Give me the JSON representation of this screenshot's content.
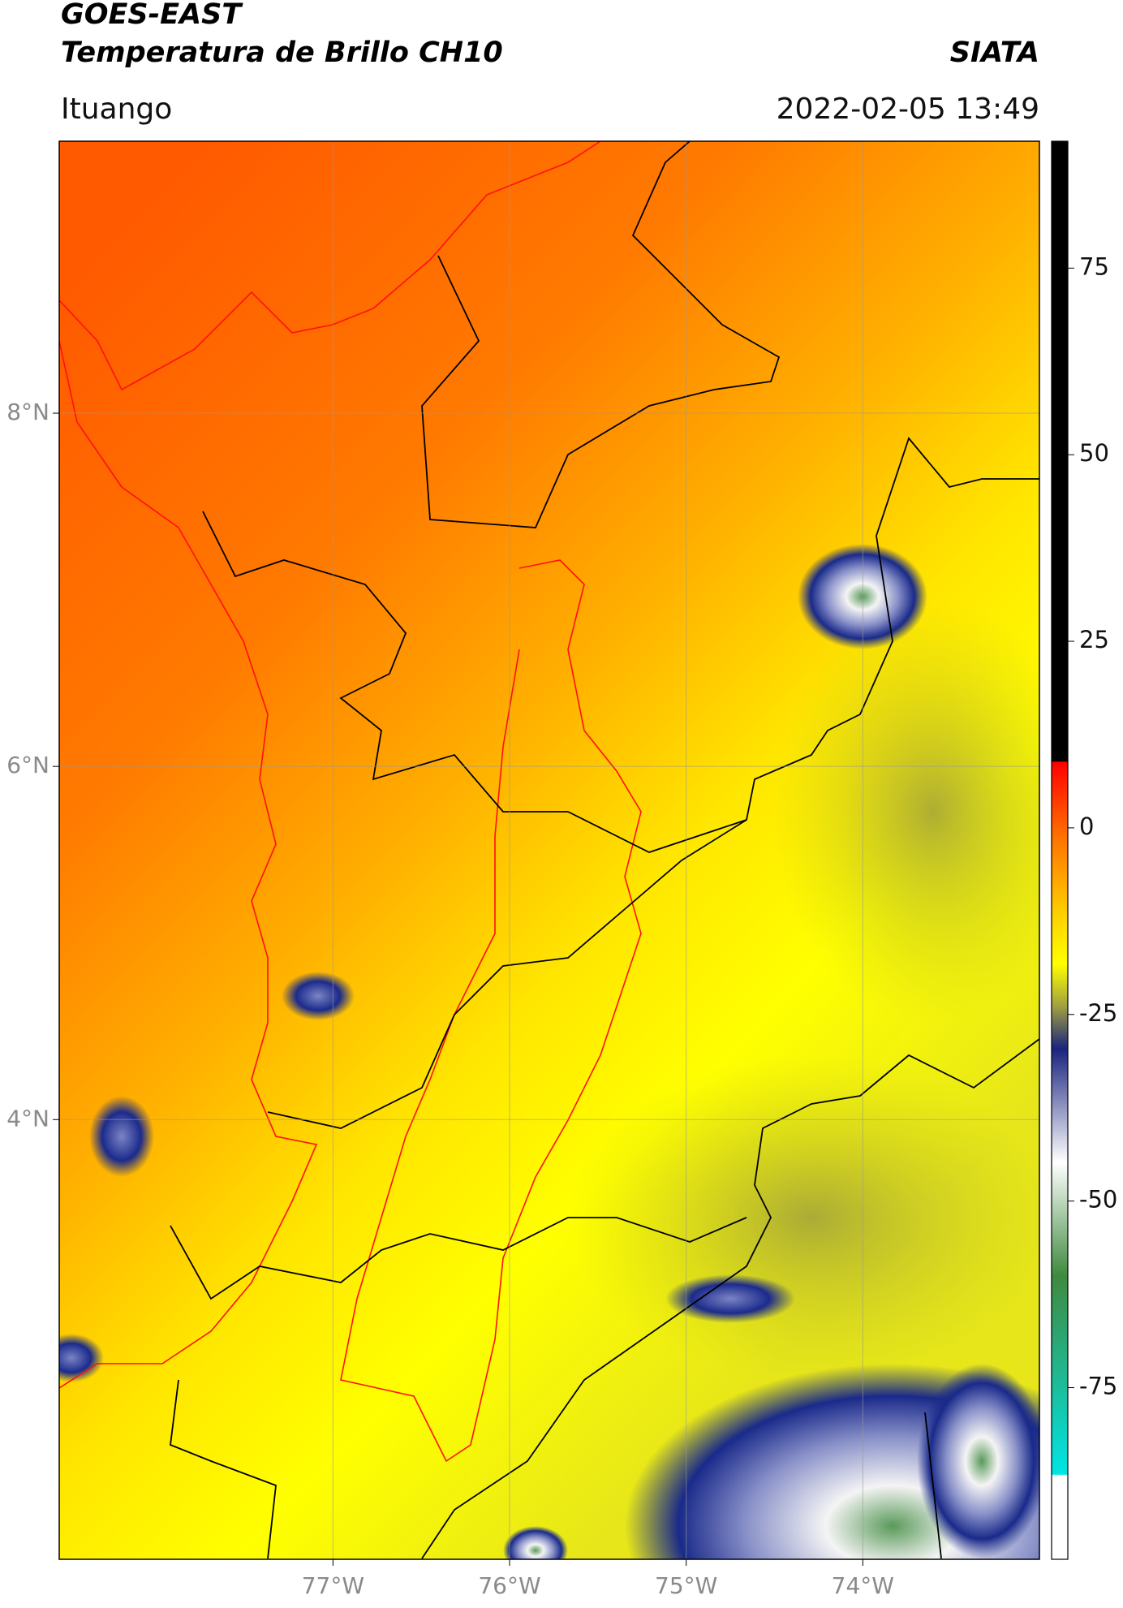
{
  "chart_data": {
    "type": "map",
    "title": "GOES-EAST",
    "subtitle": "Temperatura de Brillo CH10",
    "source": "SIATA",
    "region": "Ituango",
    "timestamp": "2022-02-05 13:49",
    "xlim": [
      -78.55,
      -73.0
    ],
    "ylim": [
      1.51,
      9.54
    ],
    "xticks": [
      {
        "value": -77,
        "label": "77°W"
      },
      {
        "value": -76,
        "label": "76°W"
      },
      {
        "value": -75,
        "label": "75°W"
      },
      {
        "value": -74,
        "label": "74°W"
      }
    ],
    "yticks": [
      {
        "value": 8,
        "label": "8°N"
      },
      {
        "value": 6,
        "label": "6°N"
      },
      {
        "value": 4,
        "label": "4°N"
      }
    ],
    "colorbar_lim": [
      -98,
      92
    ],
    "colorbar_ticks": [
      75,
      50,
      25,
      0,
      -25,
      -50,
      -75
    ],
    "grid": true
  }
}
